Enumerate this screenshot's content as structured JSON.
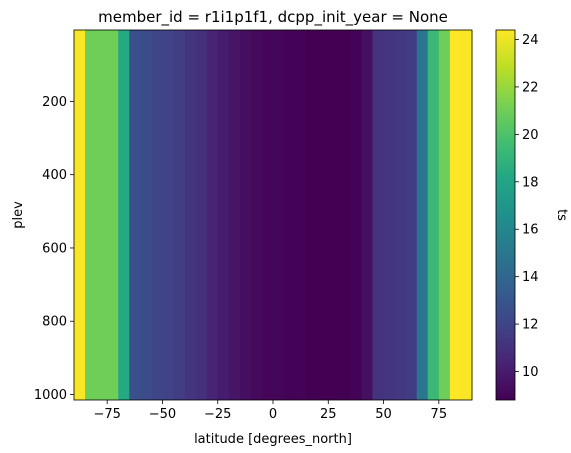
{
  "chart_data": {
    "type": "heatmap",
    "title": "member_id = r1i1p1f1, dcpp_init_year = None",
    "xlabel": "latitude [degrees_north]",
    "ylabel": "plev",
    "colorbar_label": "ts",
    "colormap": "viridis",
    "xlim": [
      -90,
      90
    ],
    "ylim": [
      1015,
      5
    ],
    "y_inverted": true,
    "x_ticks": [
      "−75",
      "−50",
      "−25",
      "0",
      "25",
      "50",
      "75"
    ],
    "x_tick_values": [
      -75,
      -50,
      -25,
      0,
      25,
      50,
      75
    ],
    "y_ticks": [
      "200",
      "400",
      "600",
      "800",
      "1000"
    ],
    "y_tick_values": [
      200,
      400,
      600,
      800,
      1000
    ],
    "colorbar_range": [
      8.8,
      24.4
    ],
    "colorbar_ticks": [
      "10",
      "12",
      "14",
      "16",
      "18",
      "20",
      "22",
      "24"
    ],
    "colorbar_tick_values": [
      10,
      12,
      14,
      16,
      18,
      20,
      22,
      24
    ],
    "latitude": [
      -87.5,
      -82.5,
      -77.5,
      -72.5,
      -67.5,
      -62.5,
      -57.5,
      -52.5,
      -47.5,
      -42.5,
      -37.5,
      -32.5,
      -27.5,
      -22.5,
      -17.5,
      -12.5,
      -7.5,
      -2.5,
      2.5,
      7.5,
      12.5,
      17.5,
      22.5,
      27.5,
      32.5,
      37.5,
      42.5,
      47.5,
      52.5,
      57.5,
      62.5,
      67.5,
      72.5,
      77.5,
      82.5,
      87.5
    ],
    "ts": [
      24.3,
      21.0,
      21.0,
      21.0,
      18.3,
      12.6,
      12.4,
      12.1,
      11.9,
      11.7,
      11.3,
      11.0,
      10.4,
      10.0,
      9.7,
      9.4,
      9.2,
      9.0,
      9.0,
      8.9,
      8.9,
      8.8,
      8.8,
      8.8,
      8.8,
      8.9,
      9.5,
      11.2,
      11.3,
      11.4,
      11.6,
      15.0,
      19.3,
      21.0,
      24.4,
      24.3
    ]
  }
}
